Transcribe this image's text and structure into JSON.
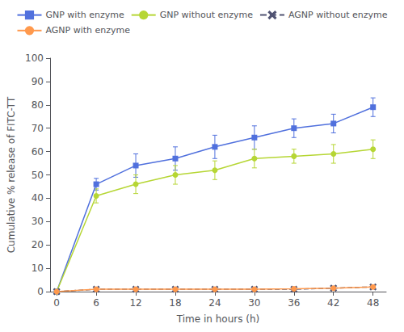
{
  "chart_data": {
    "type": "line",
    "xlabel": "Time in hours (h)",
    "ylabel": "Cumulative % release of FITC-TT",
    "x": [
      0,
      6,
      12,
      18,
      24,
      30,
      36,
      42,
      48
    ],
    "series": [
      {
        "name": "GNP with enzyme",
        "values": [
          0,
          46,
          54,
          57,
          62,
          66,
          70,
          72,
          79
        ],
        "error": [
          0,
          2.5,
          5,
          5,
          5,
          5,
          4,
          4,
          4
        ],
        "marker": "square",
        "line_style": "solid"
      },
      {
        "name": "GNP without enzyme",
        "values": [
          0,
          41,
          46,
          50,
          52,
          57,
          58,
          59,
          61
        ],
        "error": [
          0,
          3,
          4,
          4,
          4,
          4,
          3,
          4,
          4
        ],
        "marker": "circle",
        "line_style": "solid"
      },
      {
        "name": "AGNP without enzyme",
        "values": [
          0,
          1,
          1,
          1,
          1,
          1,
          1,
          1.5,
          2
        ],
        "error": [
          0,
          0.3,
          0.3,
          0.3,
          0.3,
          0.3,
          0.3,
          0.3,
          0.3
        ],
        "marker": "x",
        "line_style": "dashed"
      },
      {
        "name": "AGNP with enzyme",
        "values": [
          0,
          1,
          1,
          1,
          1,
          1,
          1.2,
          1.5,
          2
        ],
        "error": [
          0,
          0.3,
          0.3,
          0.3,
          0.3,
          0.3,
          0.3,
          0.3,
          0.3
        ],
        "marker": "circle",
        "line_style": "solid"
      }
    ],
    "xlim": [
      -1,
      50
    ],
    "xticks": [
      0,
      6,
      12,
      18,
      24,
      30,
      36,
      42,
      48
    ],
    "ylim": [
      0,
      100
    ],
    "yticks": [
      0,
      10,
      20,
      30,
      40,
      50,
      60,
      70,
      80,
      90,
      100
    ],
    "grid": false,
    "legend": "top"
  }
}
